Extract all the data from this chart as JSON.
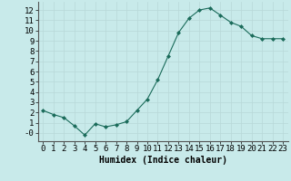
{
  "x": [
    0,
    1,
    2,
    3,
    4,
    5,
    6,
    7,
    8,
    9,
    10,
    11,
    12,
    13,
    14,
    15,
    16,
    17,
    18,
    19,
    20,
    21,
    22,
    23
  ],
  "y": [
    2.2,
    1.8,
    1.5,
    0.7,
    -0.2,
    0.9,
    0.6,
    0.8,
    1.1,
    2.2,
    3.3,
    5.2,
    7.5,
    9.8,
    11.2,
    12.0,
    12.2,
    11.5,
    10.8,
    10.4,
    9.5,
    9.2,
    9.2,
    9.2
  ],
  "line_color": "#1a6b5a",
  "marker": "D",
  "marker_size": 2.0,
  "bg_color": "#c8eaea",
  "grid_color": "#b8d8d8",
  "xlabel": "Humidex (Indice chaleur)",
  "xlabel_fontsize": 7,
  "ylabel_ticks": [
    0,
    1,
    2,
    3,
    4,
    5,
    6,
    7,
    8,
    9,
    10,
    11,
    12
  ],
  "ytick_labels": [
    "-0",
    "1",
    "2",
    "3",
    "4",
    "5",
    "6",
    "7",
    "8",
    "9",
    "10",
    "11",
    "12"
  ],
  "xlim": [
    -0.5,
    23.5
  ],
  "ylim": [
    -0.8,
    12.8
  ],
  "tick_fontsize": 6.5
}
